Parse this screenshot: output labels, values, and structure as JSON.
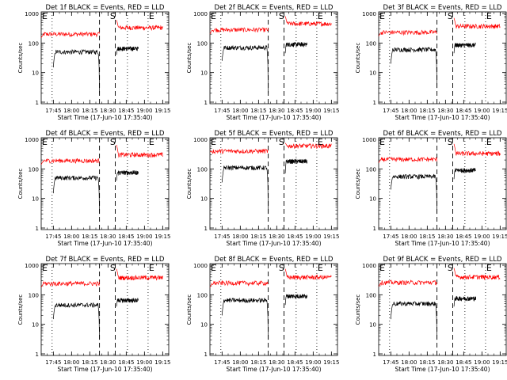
{
  "figure": {
    "title_pattern": "Det {det} BLACK = Events, RED = LLD",
    "xtitle": "Start Time (17-Jun-10 17:35:40)",
    "ytitle": "Counts/sec"
  },
  "chart_data": [
    {
      "type": "line",
      "title": "Det 1f BLACK = Events, RED = LLD",
      "xlabel": "Start Time (17-Jun-10 17:35:40)",
      "ylabel": "Counts/sec",
      "x_ticks": [
        "17:45",
        "18:00",
        "18:15",
        "18:30",
        "18:45",
        "19:00",
        "19:15"
      ],
      "y_ticks": [
        "1",
        "10",
        "100",
        "1000"
      ],
      "y_scale": "log",
      "ylim": [
        1,
        1000
      ],
      "markers": [
        {
          "label": "E",
          "time": "17:35"
        },
        {
          "label": "S",
          "time": "18:31"
        },
        {
          "label": "E",
          "time": "19:03"
        }
      ],
      "dashed_lines": [
        "18:23",
        "18:36"
      ],
      "dotted_lines": [
        "17:44",
        "18:46",
        "19:03"
      ],
      "series": [
        {
          "name": "BLACK = Events",
          "color": "#000000",
          "segments": [
            {
              "start": "17:45",
              "end": "18:23",
              "level": 50,
              "dip_start": 15,
              "dip_end": 2
            },
            {
              "start": "18:37",
              "end": "18:55",
              "level": 65,
              "dip_start": 40
            }
          ]
        },
        {
          "name": "RED = LLD",
          "color": "#ff0000",
          "segments": [
            {
              "start": "17:35",
              "end": "18:23",
              "level": 200,
              "dip_start": 150
            },
            {
              "start": "18:37",
              "end": "19:15",
              "level": 330,
              "dip_start": 600
            }
          ]
        }
      ]
    },
    {
      "type": "line",
      "title": "Det 2f BLACK = Events, RED = LLD",
      "xlabel": "Start Time (17-Jun-10 17:35:40)",
      "ylabel": "Counts/sec",
      "x_ticks": [
        "17:45",
        "18:00",
        "18:15",
        "18:30",
        "18:45",
        "19:00",
        "19:15"
      ],
      "y_ticks": [
        "1",
        "10",
        "100",
        "1000"
      ],
      "y_scale": "log",
      "ylim": [
        1,
        1000
      ],
      "markers": [
        {
          "label": "E",
          "time": "17:35"
        },
        {
          "label": "S",
          "time": "18:31"
        },
        {
          "label": "E",
          "time": "19:03"
        }
      ],
      "dashed_lines": [
        "18:23",
        "18:36"
      ],
      "dotted_lines": [
        "17:44",
        "18:46",
        "19:03"
      ],
      "series": [
        {
          "name": "BLACK = Events",
          "color": "#000000",
          "segments": [
            {
              "start": "17:45",
              "end": "18:23",
              "level": 70,
              "dip_start": 25,
              "dip_end": 2
            },
            {
              "start": "18:37",
              "end": "18:55",
              "level": 90,
              "dip_start": 45
            }
          ]
        },
        {
          "name": "RED = LLD",
          "color": "#ff0000",
          "segments": [
            {
              "start": "17:35",
              "end": "18:23",
              "level": 280,
              "dip_start": 200
            },
            {
              "start": "18:37",
              "end": "19:15",
              "level": 450,
              "dip_start": 800
            }
          ]
        }
      ]
    },
    {
      "type": "line",
      "title": "Det 3f BLACK = Events, RED = LLD",
      "xlabel": "Start Time (17-Jun-10 17:35:40)",
      "ylabel": "Counts/sec",
      "x_ticks": [
        "17:45",
        "18:00",
        "18:15",
        "18:30",
        "18:45",
        "19:00",
        "19:15"
      ],
      "y_ticks": [
        "1",
        "10",
        "100",
        "1000"
      ],
      "y_scale": "log",
      "ylim": [
        1,
        1000
      ],
      "markers": [
        {
          "label": "E",
          "time": "17:35"
        },
        {
          "label": "S",
          "time": "18:31"
        },
        {
          "label": "E",
          "time": "19:03"
        }
      ],
      "dashed_lines": [
        "18:23",
        "18:36"
      ],
      "dotted_lines": [
        "17:44",
        "18:46",
        "19:03"
      ],
      "series": [
        {
          "name": "BLACK = Events",
          "color": "#000000",
          "segments": [
            {
              "start": "17:45",
              "end": "18:23",
              "level": 60,
              "dip_start": 20,
              "dip_end": 3
            },
            {
              "start": "18:37",
              "end": "18:55",
              "level": 85,
              "dip_start": 45
            }
          ]
        },
        {
          "name": "RED = LLD",
          "color": "#ff0000",
          "segments": [
            {
              "start": "17:35",
              "end": "18:23",
              "level": 230,
              "dip_start": 170
            },
            {
              "start": "18:37",
              "end": "19:15",
              "level": 370,
              "dip_start": 700
            }
          ]
        }
      ]
    },
    {
      "type": "line",
      "title": "Det 4f BLACK = Events, RED = LLD",
      "xlabel": "Start Time (17-Jun-10 17:35:40)",
      "ylabel": "Counts/sec",
      "x_ticks": [
        "17:45",
        "18:00",
        "18:15",
        "18:30",
        "18:45",
        "19:00",
        "19:15"
      ],
      "y_ticks": [
        "1",
        "10",
        "100",
        "1000"
      ],
      "y_scale": "log",
      "ylim": [
        1,
        1000
      ],
      "markers": [
        {
          "label": "E",
          "time": "17:35"
        },
        {
          "label": "S",
          "time": "18:31"
        },
        {
          "label": "E",
          "time": "19:03"
        }
      ],
      "dashed_lines": [
        "18:23",
        "18:36"
      ],
      "dotted_lines": [
        "17:44",
        "18:46",
        "19:03"
      ],
      "series": [
        {
          "name": "BLACK = Events",
          "color": "#000000",
          "segments": [
            {
              "start": "17:45",
              "end": "18:23",
              "level": 50,
              "dip_start": 15,
              "dip_end": 3
            },
            {
              "start": "18:37",
              "end": "18:55",
              "level": 75,
              "dip_start": 40
            }
          ]
        },
        {
          "name": "RED = LLD",
          "color": "#ff0000",
          "segments": [
            {
              "start": "17:35",
              "end": "18:23",
              "level": 190,
              "dip_start": 140
            },
            {
              "start": "18:37",
              "end": "19:15",
              "level": 300,
              "dip_start": 650
            }
          ]
        }
      ]
    },
    {
      "type": "line",
      "title": "Det 5f BLACK = Events, RED = LLD",
      "xlabel": "Start Time (17-Jun-10 17:35:40)",
      "ylabel": "Counts/sec",
      "x_ticks": [
        "17:45",
        "18:00",
        "18:15",
        "18:30",
        "18:45",
        "19:00",
        "19:15"
      ],
      "y_ticks": [
        "1",
        "10",
        "100",
        "1000"
      ],
      "y_scale": "log",
      "ylim": [
        1,
        1000
      ],
      "markers": [
        {
          "label": "E",
          "time": "17:35"
        },
        {
          "label": "S",
          "time": "18:31"
        },
        {
          "label": "E",
          "time": "19:03"
        }
      ],
      "dashed_lines": [
        "18:23",
        "18:36"
      ],
      "dotted_lines": [
        "17:44",
        "18:46",
        "19:03"
      ],
      "series": [
        {
          "name": "BLACK = Events",
          "color": "#000000",
          "segments": [
            {
              "start": "17:45",
              "end": "18:23",
              "level": 110,
              "dip_start": 35,
              "dip_end": 3
            },
            {
              "start": "18:37",
              "end": "18:55",
              "level": 180,
              "dip_start": 70
            }
          ]
        },
        {
          "name": "RED = LLD",
          "color": "#ff0000",
          "segments": [
            {
              "start": "17:35",
              "end": "18:23",
              "level": 400,
              "dip_start": 380
            },
            {
              "start": "18:37",
              "end": "19:15",
              "level": 600,
              "dip_start": 750
            }
          ]
        }
      ]
    },
    {
      "type": "line",
      "title": "Det 6f BLACK = Events, RED = LLD",
      "xlabel": "Start Time (17-Jun-10 17:35:40)",
      "ylabel": "Counts/sec",
      "x_ticks": [
        "17:45",
        "18:00",
        "18:15",
        "18:30",
        "18:45",
        "19:00",
        "19:15"
      ],
      "y_ticks": [
        "1",
        "10",
        "100",
        "1000"
      ],
      "y_scale": "log",
      "ylim": [
        1,
        1000
      ],
      "markers": [
        {
          "label": "E",
          "time": "17:35"
        },
        {
          "label": "S",
          "time": "18:31"
        },
        {
          "label": "E",
          "time": "19:03"
        }
      ],
      "dashed_lines": [
        "18:23",
        "18:36"
      ],
      "dotted_lines": [
        "17:44",
        "18:46",
        "19:03"
      ],
      "series": [
        {
          "name": "BLACK = Events",
          "color": "#000000",
          "segments": [
            {
              "start": "17:45",
              "end": "18:23",
              "level": 55,
              "dip_start": 20,
              "dip_end": 3
            },
            {
              "start": "18:37",
              "end": "18:55",
              "level": 90,
              "dip_start": 45
            }
          ]
        },
        {
          "name": "RED = LLD",
          "color": "#ff0000",
          "segments": [
            {
              "start": "17:35",
              "end": "18:23",
              "level": 210,
              "dip_start": 160
            },
            {
              "start": "18:37",
              "end": "19:15",
              "level": 330,
              "dip_start": 700
            }
          ]
        }
      ]
    },
    {
      "type": "line",
      "title": "Det 7f BLACK = Events, RED = LLD",
      "xlabel": "Start Time (17-Jun-10 17:35:40)",
      "ylabel": "Counts/sec",
      "x_ticks": [
        "17:45",
        "18:00",
        "18:15",
        "18:30",
        "18:45",
        "19:00",
        "19:15"
      ],
      "y_ticks": [
        "1",
        "10",
        "100",
        "1000"
      ],
      "y_scale": "log",
      "ylim": [
        1,
        1000
      ],
      "markers": [
        {
          "label": "E",
          "time": "17:35"
        },
        {
          "label": "S",
          "time": "18:31"
        },
        {
          "label": "E",
          "time": "19:03"
        }
      ],
      "dashed_lines": [
        "18:23",
        "18:36"
      ],
      "dotted_lines": [
        "17:44",
        "18:46",
        "19:03"
      ],
      "series": [
        {
          "name": "BLACK = Events",
          "color": "#000000",
          "segments": [
            {
              "start": "17:45",
              "end": "18:23",
              "level": 45,
              "dip_start": 15,
              "dip_end": 3
            },
            {
              "start": "18:37",
              "end": "18:55",
              "level": 65,
              "dip_start": 40
            }
          ]
        },
        {
          "name": "RED = LLD",
          "color": "#ff0000",
          "segments": [
            {
              "start": "17:35",
              "end": "18:23",
              "level": 240,
              "dip_start": 180
            },
            {
              "start": "18:37",
              "end": "19:15",
              "level": 380,
              "dip_start": 750
            }
          ]
        }
      ]
    },
    {
      "type": "line",
      "title": "Det 8f BLACK = Events, RED = LLD",
      "xlabel": "Start Time (17-Jun-10 17:35:40)",
      "ylabel": "Counts/sec",
      "x_ticks": [
        "17:45",
        "18:00",
        "18:15",
        "18:30",
        "18:45",
        "19:00",
        "19:15"
      ],
      "y_ticks": [
        "1",
        "10",
        "100",
        "1000"
      ],
      "y_scale": "log",
      "ylim": [
        1,
        1000
      ],
      "markers": [
        {
          "label": "E",
          "time": "17:35"
        },
        {
          "label": "S",
          "time": "18:31"
        },
        {
          "label": "E",
          "time": "19:03"
        }
      ],
      "dashed_lines": [
        "18:23",
        "18:36"
      ],
      "dotted_lines": [
        "17:44",
        "18:46",
        "19:03"
      ],
      "series": [
        {
          "name": "BLACK = Events",
          "color": "#000000",
          "segments": [
            {
              "start": "17:45",
              "end": "18:23",
              "level": 65,
              "dip_start": 20,
              "dip_end": 3
            },
            {
              "start": "18:37",
              "end": "18:55",
              "level": 90,
              "dip_start": 45
            }
          ]
        },
        {
          "name": "RED = LLD",
          "color": "#ff0000",
          "segments": [
            {
              "start": "17:35",
              "end": "18:23",
              "level": 250,
              "dip_start": 180
            },
            {
              "start": "18:37",
              "end": "19:15",
              "level": 390,
              "dip_start": 750
            }
          ]
        }
      ]
    },
    {
      "type": "line",
      "title": "Det 9f BLACK = Events, RED = LLD",
      "xlabel": "Start Time (17-Jun-10 17:35:40)",
      "ylabel": "Counts/sec",
      "x_ticks": [
        "17:45",
        "18:00",
        "18:15",
        "18:30",
        "18:45",
        "19:00",
        "19:15"
      ],
      "y_ticks": [
        "1",
        "10",
        "100",
        "1000"
      ],
      "y_scale": "log",
      "ylim": [
        1,
        1000
      ],
      "markers": [
        {
          "label": "E",
          "time": "17:35"
        },
        {
          "label": "S",
          "time": "18:31"
        },
        {
          "label": "E",
          "time": "19:03"
        }
      ],
      "dashed_lines": [
        "18:23",
        "18:36"
      ],
      "dotted_lines": [
        "17:44",
        "18:46",
        "19:03"
      ],
      "series": [
        {
          "name": "BLACK = Events",
          "color": "#000000",
          "segments": [
            {
              "start": "17:45",
              "end": "18:23",
              "level": 50,
              "dip_start": 15,
              "dip_end": 3
            },
            {
              "start": "18:37",
              "end": "18:55",
              "level": 75,
              "dip_start": 40
            }
          ]
        },
        {
          "name": "RED = LLD",
          "color": "#ff0000",
          "segments": [
            {
              "start": "17:35",
              "end": "18:23",
              "level": 260,
              "dip_start": 190
            },
            {
              "start": "18:37",
              "end": "19:15",
              "level": 400,
              "dip_start": 800
            }
          ]
        }
      ]
    }
  ]
}
